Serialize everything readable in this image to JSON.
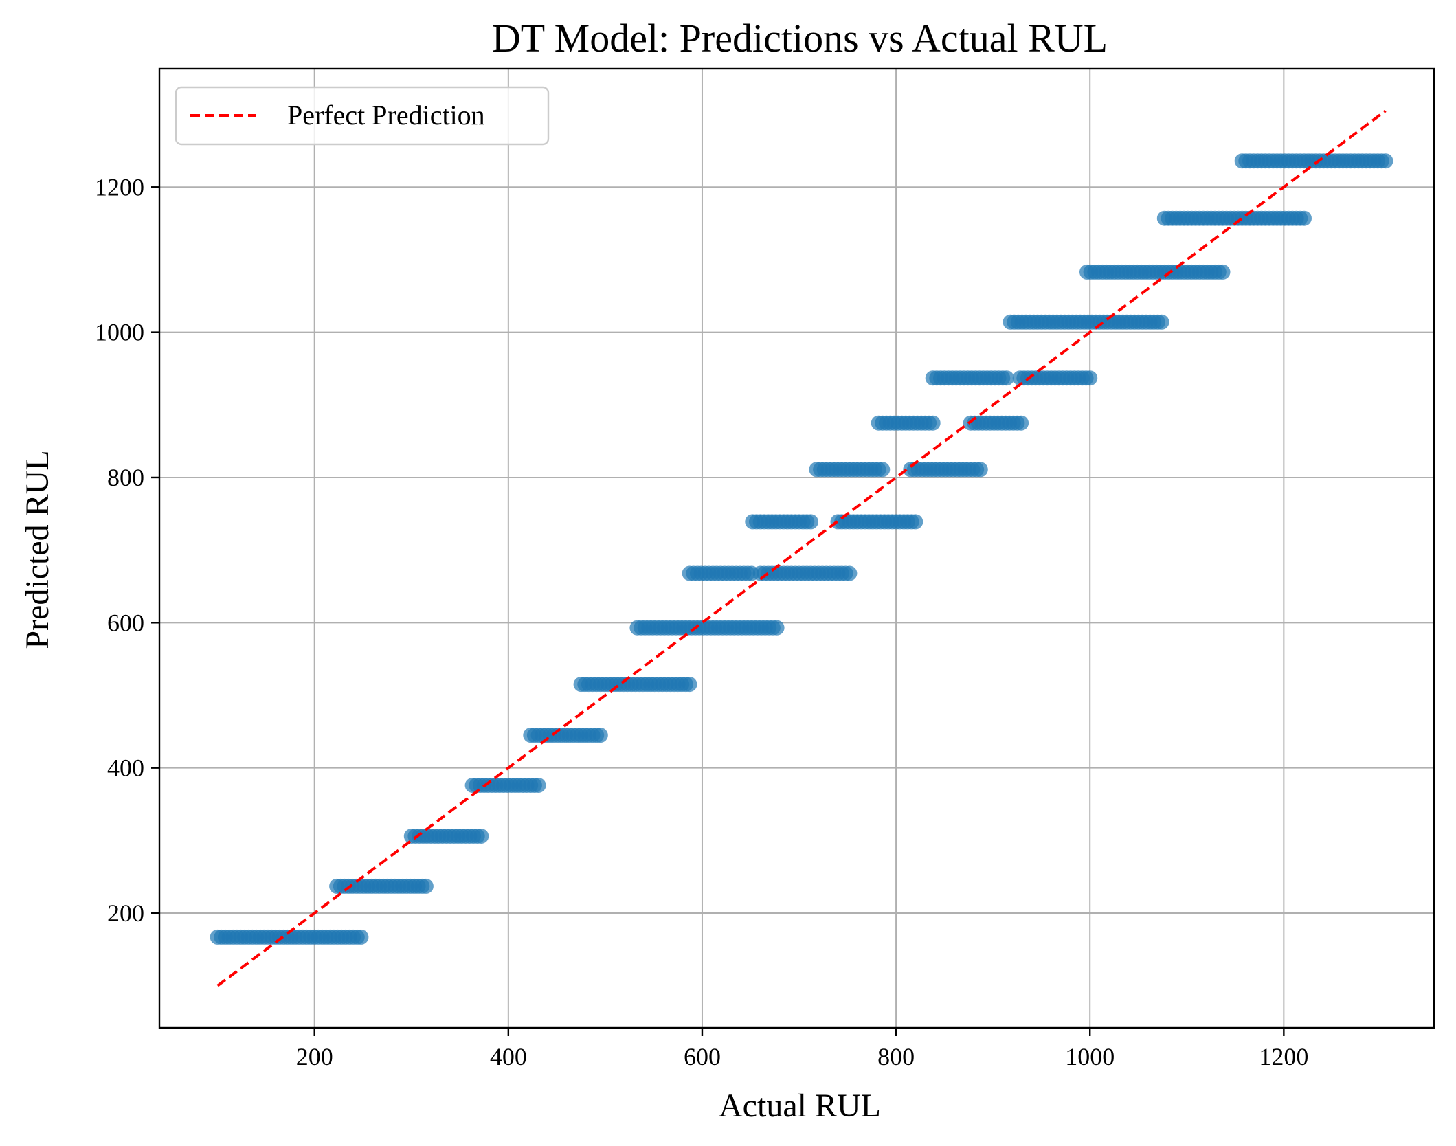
{
  "chart_data": {
    "type": "scatter",
    "title": "DT Model: Predictions vs Actual RUL",
    "xlabel": "Actual RUL",
    "ylabel": "Predicted RUL",
    "xlim": [
      40,
      1355
    ],
    "ylim": [
      42,
      1363
    ],
    "xticks": [
      200,
      400,
      600,
      800,
      1000,
      1200
    ],
    "yticks": [
      200,
      400,
      600,
      800,
      1000,
      1200
    ],
    "grid": true,
    "legend_position": "top-left",
    "colors": {
      "scatter": "#1f77b4",
      "reference": "#ff0000"
    },
    "reference_line": {
      "name": "Perfect Prediction",
      "x": [
        100,
        1305
      ],
      "y": [
        100,
        1305
      ]
    },
    "segments": [
      {
        "y": 167,
        "x_from": 100,
        "x_to": 250
      },
      {
        "y": 237,
        "x_from": 223,
        "x_to": 315
      },
      {
        "y": 306,
        "x_from": 300,
        "x_to": 372
      },
      {
        "y": 376,
        "x_from": 363,
        "x_to": 432
      },
      {
        "y": 445,
        "x_from": 423,
        "x_to": 495
      },
      {
        "y": 515,
        "x_from": 475,
        "x_to": 590
      },
      {
        "y": 593,
        "x_from": 533,
        "x_to": 680
      },
      {
        "y": 668,
        "x_from": 587,
        "x_to": 652
      },
      {
        "y": 668,
        "x_from": 660,
        "x_to": 753
      },
      {
        "y": 739,
        "x_from": 652,
        "x_to": 712
      },
      {
        "y": 739,
        "x_from": 740,
        "x_to": 823
      },
      {
        "y": 811,
        "x_from": 718,
        "x_to": 788
      },
      {
        "y": 811,
        "x_from": 815,
        "x_to": 890
      },
      {
        "y": 875,
        "x_from": 782,
        "x_to": 838
      },
      {
        "y": 875,
        "x_from": 877,
        "x_to": 932
      },
      {
        "y": 937,
        "x_from": 838,
        "x_to": 917
      },
      {
        "y": 937,
        "x_from": 928,
        "x_to": 1000
      },
      {
        "y": 1014,
        "x_from": 918,
        "x_to": 1077
      },
      {
        "y": 1083,
        "x_from": 997,
        "x_to": 1140
      },
      {
        "y": 1157,
        "x_from": 1077,
        "x_to": 1222
      },
      {
        "y": 1236,
        "x_from": 1157,
        "x_to": 1305
      }
    ]
  }
}
